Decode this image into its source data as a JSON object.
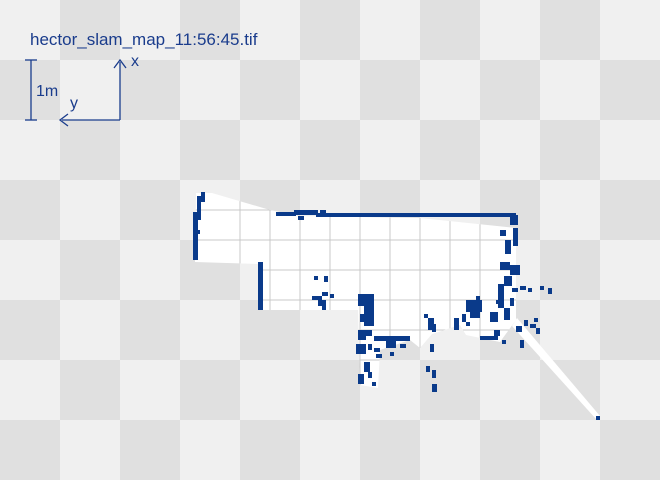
{
  "map": {
    "filename": "hector_slam_map_11:56:45.tif",
    "scale_label": "1m",
    "axis_x_label": "x",
    "axis_y_label": "y",
    "colors": {
      "wall": "#0a3a8a",
      "free": "#ffffff",
      "grid": "#c8c8c8",
      "background_light": "#f0f0f0",
      "background_dark": "#e0e0e0",
      "text": "#1a3c8c"
    }
  }
}
